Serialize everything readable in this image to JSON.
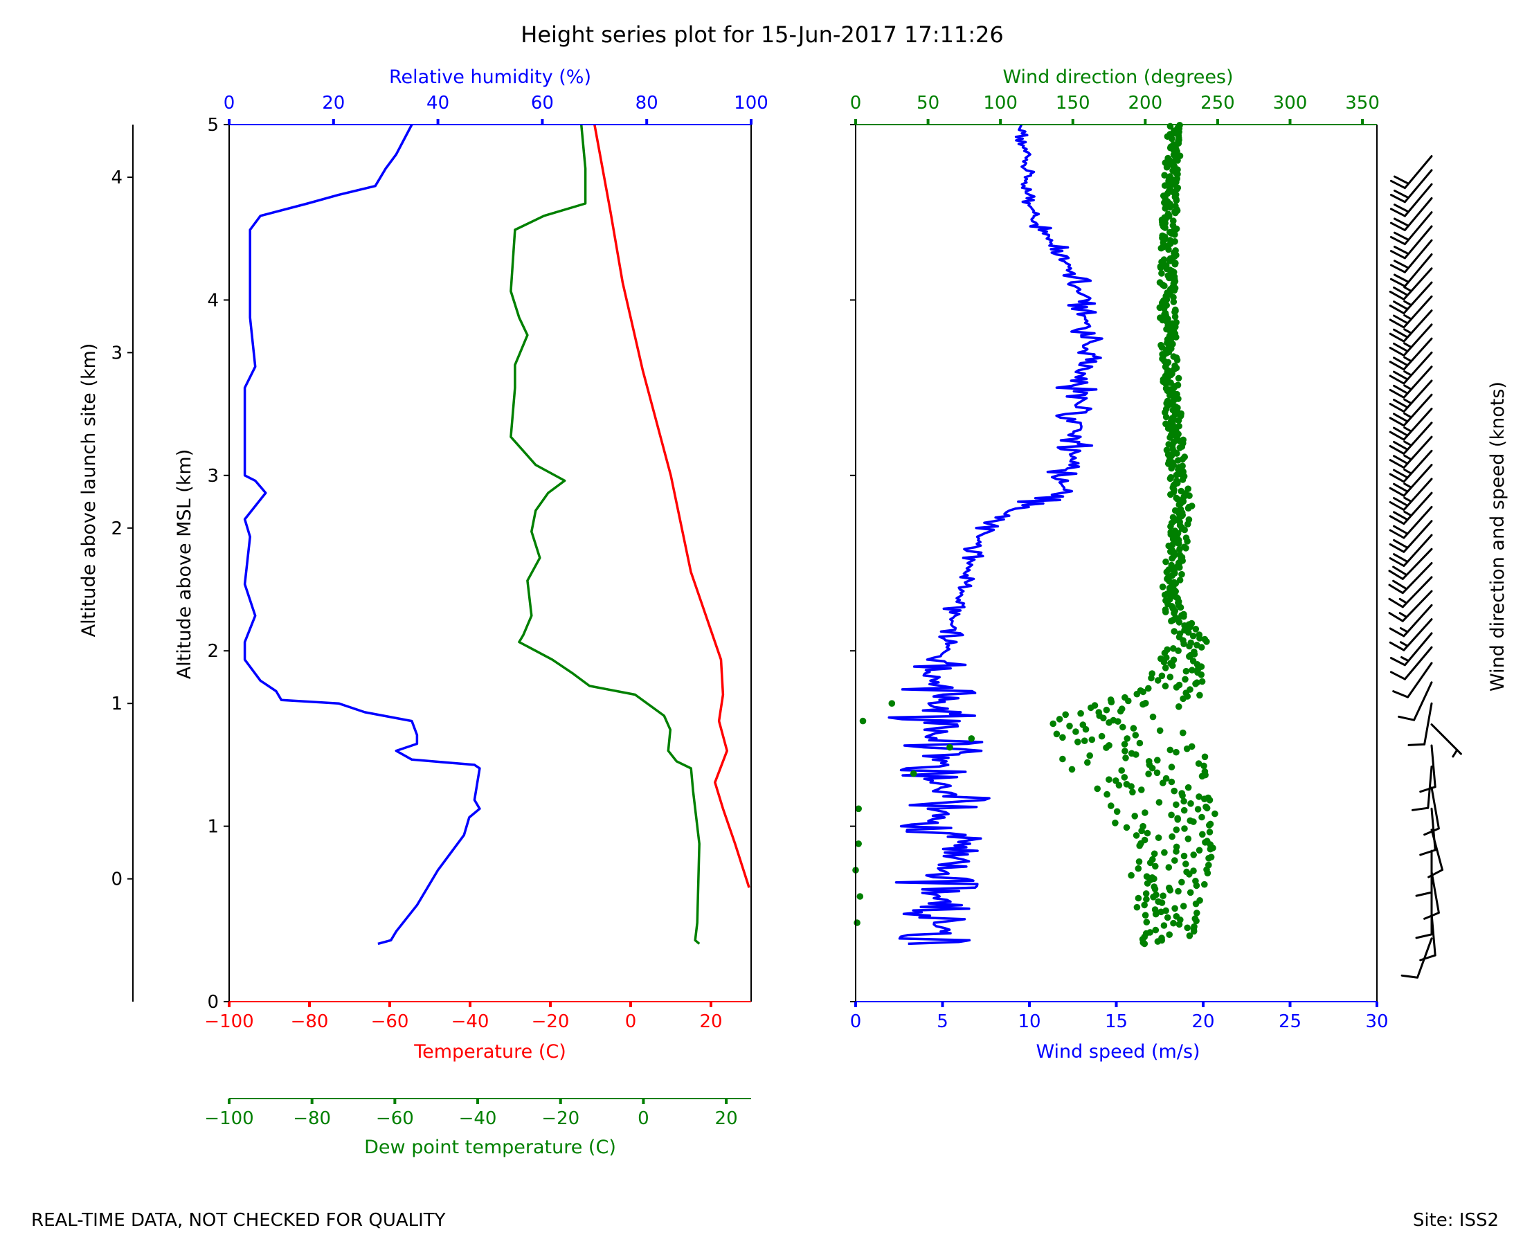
{
  "title": "Height series plot for 15-Jun-2017 17:11:26",
  "footer": {
    "left": "REAL-TIME DATA, NOT CHECKED FOR QUALITY",
    "right": "Site: ISS2"
  },
  "colors": {
    "temperature": "#ff0000",
    "dewpoint": "#008000",
    "humidity": "#0000ff",
    "wind_speed": "#0000ff",
    "wind_direction": "#008000",
    "barbs": "#000000"
  },
  "chart_data": [
    {
      "type": "line",
      "name": "thermodynamic-panel",
      "ylabel": "Altitude above MSL (km)",
      "ylim": [
        0,
        5
      ],
      "yticks": [
        0,
        1,
        2,
        3,
        4,
        5
      ],
      "launch_axis": {
        "label": "Altitude above launch site (km)",
        "ticks": [
          0,
          1,
          2,
          3,
          4
        ],
        "launch_altitude_km": 0.7
      },
      "axes": {
        "temperature": {
          "label": "Temperature (C)",
          "lim": [
            -100,
            30
          ],
          "ticks": [
            -100,
            -80,
            -60,
            -40,
            -20,
            0,
            20
          ]
        },
        "humidity": {
          "label": "Relative humidity (%)",
          "lim": [
            0,
            100
          ],
          "ticks": [
            0,
            20,
            40,
            60,
            80,
            100
          ]
        },
        "dewpoint": {
          "label": "Dew point temperature (C)",
          "lim": [
            -100,
            26
          ],
          "ticks": [
            -100,
            -80,
            -60,
            -40,
            -20,
            0,
            20
          ]
        }
      },
      "series": [
        {
          "name": "Temperature",
          "axis": "temperature",
          "points": [
            [
              29.5,
              0.65
            ],
            [
              26,
              0.9
            ],
            [
              23,
              1.1
            ],
            [
              21,
              1.25
            ],
            [
              24,
              1.43
            ],
            [
              22,
              1.6
            ],
            [
              23,
              1.75
            ],
            [
              22.5,
              1.95
            ],
            [
              15,
              2.45
            ],
            [
              10,
              3.0
            ],
            [
              3,
              3.6
            ],
            [
              -2,
              4.1
            ],
            [
              -5,
              4.5
            ],
            [
              -9,
              5.0
            ]
          ]
        },
        {
          "name": "Dew point",
          "axis": "dewpoint",
          "points": [
            [
              13.5,
              0.33
            ],
            [
              12.5,
              0.35
            ],
            [
              13,
              0.45
            ],
            [
              13.5,
              0.9
            ],
            [
              12,
              1.2
            ],
            [
              11.5,
              1.33
            ],
            [
              8,
              1.37
            ],
            [
              6,
              1.43
            ],
            [
              6.5,
              1.55
            ],
            [
              5,
              1.63
            ],
            [
              -2,
              1.75
            ],
            [
              -13,
              1.8
            ],
            [
              -17,
              1.87
            ],
            [
              -22,
              1.95
            ],
            [
              -30,
              2.05
            ],
            [
              -29,
              2.09
            ],
            [
              -27,
              2.2
            ],
            [
              -28,
              2.4
            ],
            [
              -25,
              2.53
            ],
            [
              -27,
              2.68
            ],
            [
              -26,
              2.8
            ],
            [
              -23,
              2.9
            ],
            [
              -19,
              2.97
            ],
            [
              -26,
              3.06
            ],
            [
              -32,
              3.22
            ],
            [
              -31,
              3.5
            ],
            [
              -31,
              3.63
            ],
            [
              -28,
              3.8
            ],
            [
              -30,
              3.9
            ],
            [
              -32,
              4.05
            ],
            [
              -31,
              4.4
            ],
            [
              -24,
              4.48
            ],
            [
              -14,
              4.55
            ],
            [
              -14,
              4.75
            ],
            [
              -15,
              5.0
            ]
          ]
        },
        {
          "name": "Relative humidity",
          "axis": "humidity",
          "points": [
            [
              28.5,
              0.33
            ],
            [
              31,
              0.35
            ],
            [
              32,
              0.4
            ],
            [
              36,
              0.55
            ],
            [
              40,
              0.75
            ],
            [
              45,
              0.95
            ],
            [
              46,
              1.05
            ],
            [
              48,
              1.1
            ],
            [
              47,
              1.15
            ],
            [
              48,
              1.33
            ],
            [
              47,
              1.35
            ],
            [
              43,
              1.36
            ],
            [
              35,
              1.38
            ],
            [
              32,
              1.43
            ],
            [
              36,
              1.47
            ],
            [
              36,
              1.52
            ],
            [
              35,
              1.6
            ],
            [
              26,
              1.65
            ],
            [
              21,
              1.7
            ],
            [
              10,
              1.72
            ],
            [
              9,
              1.77
            ],
            [
              6,
              1.83
            ],
            [
              3,
              1.95
            ],
            [
              3,
              2.05
            ],
            [
              5,
              2.2
            ],
            [
              3,
              2.38
            ],
            [
              4,
              2.65
            ],
            [
              3,
              2.75
            ],
            [
              7,
              2.9
            ],
            [
              5,
              2.97
            ],
            [
              3,
              3.0
            ],
            [
              3,
              3.5
            ],
            [
              5,
              3.62
            ],
            [
              4,
              3.9
            ],
            [
              4,
              4.4
            ],
            [
              6,
              4.48
            ],
            [
              15,
              4.55
            ],
            [
              21,
              4.6
            ],
            [
              28,
              4.65
            ],
            [
              30,
              4.75
            ],
            [
              32,
              4.83
            ],
            [
              35,
              5.0
            ]
          ]
        }
      ]
    },
    {
      "type": "scatter",
      "name": "wind-panel",
      "ylim": [
        0,
        5
      ],
      "axes": {
        "wind_speed": {
          "label": "Wind speed (m/s)",
          "lim": [
            0,
            30
          ],
          "ticks": [
            0,
            5,
            10,
            15,
            20,
            25,
            30
          ]
        },
        "wind_direction": {
          "label": "Wind direction (degrees)",
          "lim": [
            0,
            360
          ],
          "ticks": [
            0,
            50,
            100,
            150,
            200,
            250,
            300,
            350
          ]
        }
      },
      "series": [
        {
          "name": "Wind speed",
          "axis": "wind_speed",
          "style": "line",
          "profile": [
            [
              0.33,
              4.5
            ],
            [
              0.5,
              5
            ],
            [
              0.65,
              4.5
            ],
            [
              0.8,
              5.5
            ],
            [
              0.9,
              6.5
            ],
            [
              1.0,
              5
            ],
            [
              1.2,
              5
            ],
            [
              1.4,
              5
            ],
            [
              1.6,
              4.8
            ],
            [
              1.8,
              4.2
            ],
            [
              2.0,
              5.3
            ],
            [
              2.2,
              5.6
            ],
            [
              2.4,
              6.3
            ],
            [
              2.6,
              6.9
            ],
            [
              2.7,
              7.6
            ],
            [
              2.8,
              9.0
            ],
            [
              2.9,
              11.8
            ],
            [
              3.0,
              12.2
            ],
            [
              3.2,
              12.8
            ],
            [
              3.5,
              12.8
            ],
            [
              3.8,
              13.4
            ],
            [
              4.0,
              13.1
            ],
            [
              4.2,
              12.3
            ],
            [
              4.4,
              10.8
            ],
            [
              4.6,
              9.6
            ],
            [
              4.8,
              10.0
            ],
            [
              5.0,
              9.5
            ]
          ],
          "amplitude": [
            [
              0.33,
              2.2
            ],
            [
              1.0,
              3.3
            ],
            [
              1.8,
              3.0
            ],
            [
              2.0,
              0.8
            ],
            [
              2.5,
              0.6
            ],
            [
              2.8,
              1.2
            ],
            [
              3.4,
              1.4
            ],
            [
              4.0,
              1.0
            ],
            [
              4.5,
              0.7
            ],
            [
              5.0,
              0.6
            ]
          ]
        },
        {
          "name": "Wind direction",
          "axis": "wind_direction",
          "style": "markers",
          "profile": [
            [
              0.33,
              215
            ],
            [
              0.6,
              215
            ],
            [
              0.8,
              220
            ],
            [
              1.0,
              215
            ],
            [
              1.2,
              205
            ],
            [
              1.35,
              195
            ],
            [
              1.5,
              185
            ],
            [
              1.65,
              180
            ],
            [
              1.8,
              225
            ],
            [
              2.0,
              225
            ],
            [
              2.05,
              235
            ],
            [
              2.15,
              225
            ],
            [
              2.3,
              217
            ],
            [
              2.6,
              222
            ],
            [
              2.8,
              226
            ],
            [
              3.0,
              222
            ],
            [
              3.5,
              218
            ],
            [
              4.0,
              215
            ],
            [
              4.5,
              217
            ],
            [
              5.0,
              220
            ]
          ],
          "spread": [
            [
              0.33,
              18
            ],
            [
              1.0,
              35
            ],
            [
              1.5,
              55
            ],
            [
              1.8,
              25
            ],
            [
              2.05,
              10
            ],
            [
              2.3,
              6
            ],
            [
              2.8,
              7
            ],
            [
              3.2,
              6
            ],
            [
              5.0,
              5
            ]
          ]
        }
      ]
    },
    {
      "type": "barbs",
      "name": "wind-barb-panel",
      "ylabel": "Wind direction and speed (knots)",
      "levels_km": [
        0.36,
        0.5,
        0.62,
        0.74,
        0.86,
        0.98,
        1.1,
        1.22,
        1.34,
        1.46,
        1.58,
        1.7,
        1.82,
        1.93,
        2.02,
        2.1,
        2.18,
        2.26,
        2.34,
        2.42,
        2.5,
        2.58,
        2.66,
        2.74,
        2.82,
        2.9,
        2.98,
        3.06,
        3.14,
        3.22,
        3.3,
        3.38,
        3.46,
        3.54,
        3.62,
        3.7,
        3.78,
        3.86,
        3.94,
        4.02,
        4.1,
        4.18,
        4.26,
        4.34,
        4.42,
        4.5,
        4.58,
        4.66,
        4.74,
        4.82
      ],
      "speed_kt": [
        10,
        10,
        10,
        10,
        10,
        10,
        10,
        10,
        10,
        10,
        5,
        10,
        10,
        10,
        10,
        15,
        15,
        15,
        15,
        15,
        20,
        20,
        20,
        20,
        20,
        25,
        25,
        25,
        25,
        25,
        25,
        25,
        25,
        25,
        25,
        25,
        25,
        25,
        25,
        25,
        25,
        25,
        20,
        20,
        20,
        20,
        20,
        20,
        20,
        20
      ],
      "direction_deg": [
        200,
        175,
        180,
        170,
        180,
        165,
        175,
        170,
        185,
        175,
        135,
        190,
        205,
        215,
        220,
        220,
        222,
        222,
        224,
        224,
        224,
        224,
        222,
        222,
        222,
        222,
        222,
        222,
        222,
        222,
        222,
        222,
        222,
        222,
        222,
        222,
        222,
        222,
        222,
        222,
        222,
        222,
        220,
        220,
        220,
        220,
        220,
        220,
        220,
        220
      ]
    }
  ]
}
